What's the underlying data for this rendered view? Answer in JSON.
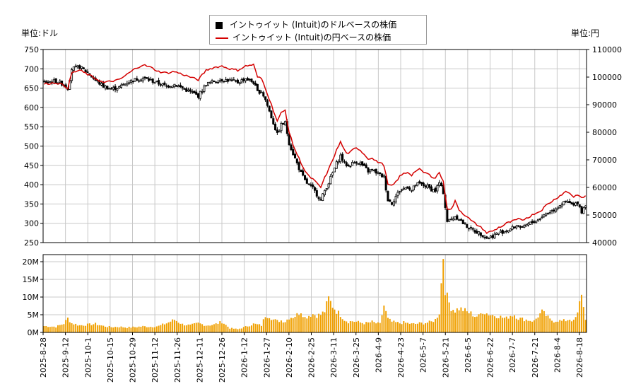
{
  "legend": {
    "usd_label": "イントゥイット (Intuit)のドルベースの株価",
    "jpy_label": "イントゥイット (Intuit)の円ベースの株価"
  },
  "units": {
    "left": "単位:ドル",
    "right": "単位:円"
  },
  "colors": {
    "candle": "#000000",
    "yen_line": "#d40000",
    "volume": "#f0a000",
    "grid": "#c8c8c8"
  },
  "chart_data": {
    "type": "candlestick+line+bar",
    "x_tick_labels": [
      "2025-8-28",
      "2025-9-12",
      "2025-10-1",
      "2025-10-15",
      "2025-10-29",
      "2025-11-12",
      "2025-11-26",
      "2025-12-11",
      "2025-12-26",
      "2026-1-12",
      "2026-1-27",
      "2026-2-10",
      "2026-2-25",
      "2026-3-11",
      "2026-3-25",
      "2026-4-9",
      "2026-4-23",
      "2026-5-7",
      "2026-5-21",
      "2026-6-5",
      "2026-6-22",
      "2026-7-7",
      "2026-7-21",
      "2026-8-4",
      "2026-8-18"
    ],
    "price_axis_usd": {
      "ticks": [
        250,
        300,
        350,
        400,
        450,
        500,
        550,
        600,
        650,
        700,
        750
      ],
      "ylim": [
        250,
        750
      ]
    },
    "price_axis_jpy": {
      "ticks": [
        40000,
        50000,
        60000,
        70000,
        80000,
        90000,
        100000,
        110000
      ],
      "ylim": [
        40000,
        110000
      ]
    },
    "volume_axis": {
      "ticks": [
        "0M",
        "5M",
        "10M",
        "15M",
        "20M"
      ],
      "tick_values": [
        0,
        5,
        10,
        15,
        20
      ],
      "ylim": [
        0,
        22
      ]
    },
    "usd_close_keypoints": [
      [
        0,
        665
      ],
      [
        6,
        668
      ],
      [
        10,
        660
      ],
      [
        12,
        650
      ],
      [
        14,
        700
      ],
      [
        18,
        705
      ],
      [
        22,
        690
      ],
      [
        26,
        670
      ],
      [
        30,
        655
      ],
      [
        34,
        648
      ],
      [
        38,
        652
      ],
      [
        42,
        665
      ],
      [
        46,
        672
      ],
      [
        50,
        676
      ],
      [
        54,
        670
      ],
      [
        58,
        662
      ],
      [
        62,
        655
      ],
      [
        66,
        660
      ],
      [
        70,
        650
      ],
      [
        74,
        640
      ],
      [
        78,
        630
      ],
      [
        82,
        660
      ],
      [
        86,
        668
      ],
      [
        90,
        672
      ],
      [
        94,
        670
      ],
      [
        98,
        665
      ],
      [
        102,
        675
      ],
      [
        106,
        665
      ],
      [
        108,
        640
      ],
      [
        110,
        642
      ],
      [
        112,
        620
      ],
      [
        114,
        590
      ],
      [
        116,
        560
      ],
      [
        118,
        530
      ],
      [
        120,
        555
      ],
      [
        122,
        560
      ],
      [
        124,
        508
      ],
      [
        126,
        480
      ],
      [
        128,
        455
      ],
      [
        130,
        430
      ],
      [
        132,
        410
      ],
      [
        134,
        398
      ],
      [
        136,
        390
      ],
      [
        138,
        375
      ],
      [
        140,
        360
      ],
      [
        142,
        385
      ],
      [
        144,
        405
      ],
      [
        146,
        430
      ],
      [
        148,
        455
      ],
      [
        150,
        475
      ],
      [
        152,
        455
      ],
      [
        154,
        448
      ],
      [
        156,
        455
      ],
      [
        158,
        460
      ],
      [
        160,
        455
      ],
      [
        162,
        445
      ],
      [
        164,
        435
      ],
      [
        166,
        438
      ],
      [
        168,
        432
      ],
      [
        170,
        425
      ],
      [
        172,
        420
      ],
      [
        174,
        360
      ],
      [
        176,
        352
      ],
      [
        178,
        370
      ],
      [
        180,
        385
      ],
      [
        182,
        390
      ],
      [
        184,
        395
      ],
      [
        186,
        385
      ],
      [
        188,
        400
      ],
      [
        190,
        402
      ],
      [
        192,
        398
      ],
      [
        194,
        395
      ],
      [
        196,
        388
      ],
      [
        198,
        385
      ],
      [
        200,
        405
      ],
      [
        202,
        380
      ],
      [
        204,
        305
      ],
      [
        206,
        310
      ],
      [
        208,
        318
      ],
      [
        210,
        312
      ],
      [
        212,
        300
      ],
      [
        214,
        292
      ],
      [
        216,
        285
      ],
      [
        218,
        280
      ],
      [
        220,
        275
      ],
      [
        222,
        270
      ],
      [
        224,
        262
      ],
      [
        226,
        265
      ],
      [
        228,
        270
      ],
      [
        230,
        275
      ],
      [
        232,
        278
      ],
      [
        234,
        282
      ],
      [
        236,
        285
      ],
      [
        238,
        290
      ],
      [
        240,
        295
      ],
      [
        242,
        285
      ],
      [
        244,
        295
      ],
      [
        246,
        300
      ],
      [
        248,
        305
      ],
      [
        250,
        310
      ],
      [
        252,
        318
      ],
      [
        254,
        325
      ],
      [
        256,
        330
      ],
      [
        258,
        335
      ],
      [
        260,
        345
      ],
      [
        262,
        350
      ],
      [
        264,
        355
      ],
      [
        266,
        352
      ],
      [
        268,
        345
      ],
      [
        270,
        355
      ],
      [
        272,
        330
      ],
      [
        274,
        350
      ]
    ],
    "jpy_keypoints": [
      [
        0,
        97500
      ],
      [
        6,
        98000
      ],
      [
        10,
        97000
      ],
      [
        12,
        96000
      ],
      [
        14,
        101500
      ],
      [
        18,
        102500
      ],
      [
        22,
        101000
      ],
      [
        26,
        99500
      ],
      [
        30,
        98000
      ],
      [
        34,
        98500
      ],
      [
        38,
        99000
      ],
      [
        42,
        101000
      ],
      [
        46,
        103000
      ],
      [
        50,
        104500
      ],
      [
        54,
        103500
      ],
      [
        58,
        102000
      ],
      [
        62,
        101500
      ],
      [
        66,
        102000
      ],
      [
        70,
        101000
      ],
      [
        74,
        100000
      ],
      [
        78,
        99000
      ],
      [
        82,
        102500
      ],
      [
        86,
        103500
      ],
      [
        90,
        104000
      ],
      [
        94,
        103000
      ],
      [
        98,
        102500
      ],
      [
        102,
        104000
      ],
      [
        106,
        104500
      ],
      [
        108,
        100000
      ],
      [
        110,
        99500
      ],
      [
        112,
        96000
      ],
      [
        114,
        92000
      ],
      [
        116,
        88000
      ],
      [
        118,
        84000
      ],
      [
        120,
        87000
      ],
      [
        122,
        88000
      ],
      [
        124,
        80000
      ],
      [
        126,
        75500
      ],
      [
        128,
        72000
      ],
      [
        130,
        69000
      ],
      [
        132,
        66000
      ],
      [
        134,
        64000
      ],
      [
        136,
        63000
      ],
      [
        138,
        61500
      ],
      [
        140,
        60000
      ],
      [
        142,
        63500
      ],
      [
        144,
        66500
      ],
      [
        146,
        70000
      ],
      [
        148,
        73500
      ],
      [
        150,
        76500
      ],
      [
        152,
        73500
      ],
      [
        154,
        72000
      ],
      [
        156,
        73500
      ],
      [
        158,
        74500
      ],
      [
        160,
        73500
      ],
      [
        162,
        72000
      ],
      [
        164,
        70500
      ],
      [
        166,
        70500
      ],
      [
        168,
        69500
      ],
      [
        170,
        69000
      ],
      [
        172,
        68000
      ],
      [
        174,
        61000
      ],
      [
        176,
        60500
      ],
      [
        178,
        62000
      ],
      [
        180,
        64000
      ],
      [
        182,
        65000
      ],
      [
        184,
        65500
      ],
      [
        186,
        64500
      ],
      [
        188,
        66000
      ],
      [
        190,
        66500
      ],
      [
        192,
        65500
      ],
      [
        194,
        65000
      ],
      [
        196,
        64000
      ],
      [
        198,
        63500
      ],
      [
        200,
        65500
      ],
      [
        202,
        62000
      ],
      [
        204,
        52500
      ],
      [
        206,
        52000
      ],
      [
        208,
        55000
      ],
      [
        210,
        52000
      ],
      [
        212,
        50500
      ],
      [
        214,
        49500
      ],
      [
        216,
        48000
      ],
      [
        218,
        47000
      ],
      [
        220,
        46000
      ],
      [
        222,
        45000
      ],
      [
        224,
        43500
      ],
      [
        226,
        44000
      ],
      [
        228,
        44500
      ],
      [
        230,
        45500
      ],
      [
        232,
        46000
      ],
      [
        234,
        47000
      ],
      [
        236,
        47500
      ],
      [
        238,
        48000
      ],
      [
        240,
        48500
      ],
      [
        242,
        48000
      ],
      [
        244,
        49000
      ],
      [
        246,
        49500
      ],
      [
        248,
        50500
      ],
      [
        250,
        51000
      ],
      [
        252,
        52000
      ],
      [
        254,
        53500
      ],
      [
        256,
        54500
      ],
      [
        258,
        55500
      ],
      [
        260,
        56500
      ],
      [
        262,
        57500
      ],
      [
        264,
        58500
      ],
      [
        266,
        58000
      ],
      [
        268,
        56500
      ],
      [
        270,
        57500
      ],
      [
        272,
        56000
      ],
      [
        274,
        57000
      ]
    ],
    "volume_keypoints": [
      [
        0,
        1.8
      ],
      [
        6,
        1.6
      ],
      [
        10,
        2.5
      ],
      [
        12,
        4.0
      ],
      [
        14,
        2.6
      ],
      [
        18,
        2.0
      ],
      [
        22,
        2.2
      ],
      [
        26,
        2.4
      ],
      [
        30,
        1.8
      ],
      [
        34,
        1.5
      ],
      [
        38,
        1.6
      ],
      [
        42,
        1.4
      ],
      [
        46,
        1.5
      ],
      [
        50,
        1.7
      ],
      [
        54,
        1.6
      ],
      [
        58,
        1.8
      ],
      [
        62,
        2.6
      ],
      [
        66,
        3.6
      ],
      [
        70,
        2.3
      ],
      [
        74,
        2.0
      ],
      [
        78,
        2.6
      ],
      [
        82,
        2.0
      ],
      [
        86,
        2.2
      ],
      [
        90,
        3.0
      ],
      [
        94,
        1.2
      ],
      [
        98,
        0.9
      ],
      [
        102,
        1.6
      ],
      [
        106,
        2.4
      ],
      [
        110,
        2.0
      ],
      [
        112,
        4.8
      ],
      [
        114,
        4.6
      ],
      [
        116,
        3.6
      ],
      [
        118,
        3.2
      ],
      [
        120,
        3.4
      ],
      [
        122,
        3.1
      ],
      [
        124,
        4.2
      ],
      [
        126,
        4.4
      ],
      [
        128,
        5.0
      ],
      [
        130,
        6.0
      ],
      [
        132,
        4.2
      ],
      [
        134,
        4.8
      ],
      [
        136,
        5.2
      ],
      [
        138,
        4.8
      ],
      [
        140,
        5.0
      ],
      [
        142,
        6.0
      ],
      [
        144,
        9.6
      ],
      [
        146,
        7.5
      ],
      [
        148,
        6.0
      ],
      [
        150,
        5.0
      ],
      [
        152,
        3.6
      ],
      [
        154,
        3.0
      ],
      [
        156,
        3.2
      ],
      [
        158,
        3.0
      ],
      [
        160,
        2.8
      ],
      [
        162,
        2.6
      ],
      [
        164,
        2.7
      ],
      [
        166,
        3.0
      ],
      [
        168,
        2.6
      ],
      [
        170,
        2.4
      ],
      [
        172,
        7.6
      ],
      [
        174,
        3.8
      ],
      [
        176,
        3.0
      ],
      [
        178,
        2.8
      ],
      [
        180,
        2.6
      ],
      [
        182,
        2.8
      ],
      [
        184,
        2.6
      ],
      [
        186,
        2.4
      ],
      [
        188,
        2.4
      ],
      [
        190,
        2.6
      ],
      [
        192,
        2.6
      ],
      [
        194,
        2.8
      ],
      [
        196,
        3.0
      ],
      [
        198,
        3.6
      ],
      [
        200,
        5.6
      ],
      [
        202,
        22.0
      ],
      [
        203,
        12.3
      ],
      [
        204,
        9.9
      ],
      [
        206,
        7.0
      ],
      [
        208,
        6.2
      ],
      [
        210,
        6.8
      ],
      [
        212,
        6.4
      ],
      [
        214,
        5.8
      ],
      [
        216,
        5.4
      ],
      [
        218,
        4.6
      ],
      [
        220,
        4.6
      ],
      [
        222,
        6.0
      ],
      [
        224,
        5.4
      ],
      [
        226,
        5.0
      ],
      [
        228,
        4.8
      ],
      [
        230,
        4.6
      ],
      [
        232,
        4.2
      ],
      [
        234,
        4.0
      ],
      [
        236,
        4.8
      ],
      [
        238,
        5.0
      ],
      [
        240,
        4.0
      ],
      [
        242,
        3.8
      ],
      [
        244,
        3.6
      ],
      [
        246,
        3.4
      ],
      [
        248,
        3.2
      ],
      [
        250,
        4.6
      ],
      [
        252,
        5.8
      ],
      [
        254,
        4.8
      ],
      [
        256,
        3.6
      ],
      [
        258,
        3.2
      ],
      [
        260,
        3.4
      ],
      [
        262,
        3.2
      ],
      [
        264,
        3.4
      ],
      [
        266,
        3.8
      ],
      [
        268,
        3.2
      ],
      [
        270,
        5.2
      ],
      [
        272,
        11.4
      ],
      [
        273,
        7.0
      ],
      [
        274,
        4.0
      ]
    ]
  }
}
